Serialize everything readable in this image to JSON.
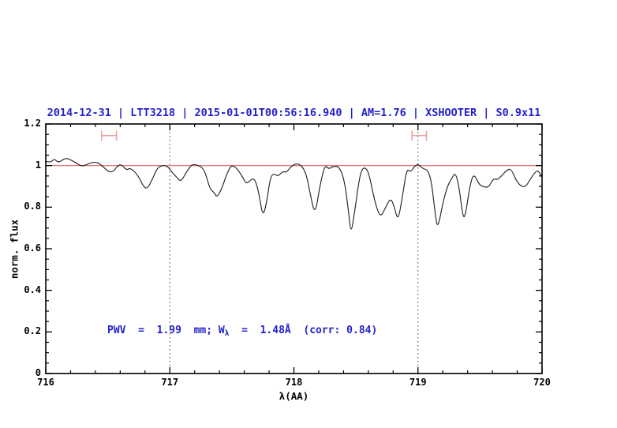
{
  "title": "2014-12-31 | LTT3218 | 2015-01-01T00:56:16.940 | AM=1.76 | XSHOOTER | S0.9x11",
  "annotation": {
    "prefix": "PWV  =  1.99  mm; W",
    "subscript": "λ",
    "suffix": "  =  1.48Å  (corr: 0.84)"
  },
  "colors": {
    "title_blue": "#2222cc",
    "continuum_red": "#e06060",
    "marker_red": "#f0a0a0",
    "curve_black": "#1c1c1c",
    "frame_black": "#000000"
  },
  "axes": {
    "x_label": "λ(AA)",
    "y_label": "norm. flux",
    "x_min": 716,
    "x_max": 720,
    "y_min": 0,
    "y_max": 1.2,
    "x_minor_step": 0.2,
    "y_minor_step": 0.05,
    "x_major_ticks": [
      {
        "value": 716,
        "label": "716"
      },
      {
        "value": 717,
        "label": "717"
      },
      {
        "value": 718,
        "label": "718"
      },
      {
        "value": 719,
        "label": "719"
      },
      {
        "value": 720,
        "label": "720"
      }
    ],
    "y_major_ticks": [
      {
        "value": 0,
        "label": "0"
      },
      {
        "value": 0.2,
        "label": "0.2"
      },
      {
        "value": 0.4,
        "label": "0.4"
      },
      {
        "value": 0.6,
        "label": "0.6"
      },
      {
        "value": 0.8,
        "label": "0.8"
      },
      {
        "value": 1,
        "label": "1"
      },
      {
        "value": 1.2,
        "label": "1.2"
      }
    ]
  },
  "chart_data": {
    "type": "line",
    "title": "2014-12-31 | LTT3218 | 2015-01-01T00:56:16.940 | AM=1.76 | XSHOOTER | S0.9x11",
    "xlabel": "λ(AA)",
    "ylabel": "norm. flux",
    "xlim": [
      716,
      720
    ],
    "ylim": [
      0,
      1.2
    ],
    "grid": false,
    "continuum_level": 1.0,
    "dotted_vlines": [
      717,
      719
    ],
    "range_markers": [
      {
        "x_center": 716.51,
        "x_half_width": 0.06,
        "y": 1.144,
        "cap_half_height": 0.024
      },
      {
        "x_center": 719.01,
        "x_half_width": 0.058,
        "y": 1.144,
        "cap_half_height": 0.024
      }
    ],
    "points": [
      [
        716.0,
        1.02
      ],
      [
        716.04,
        1.014
      ],
      [
        716.07,
        1.034
      ],
      [
        716.1,
        1.012
      ],
      [
        716.16,
        1.038
      ],
      [
        716.21,
        1.025
      ],
      [
        716.27,
        1.003
      ],
      [
        716.3,
        0.997
      ],
      [
        716.35,
        1.01
      ],
      [
        716.39,
        1.018
      ],
      [
        716.44,
        1.008
      ],
      [
        716.5,
        0.972
      ],
      [
        716.54,
        0.968
      ],
      [
        716.58,
        1.0
      ],
      [
        716.61,
        1.006
      ],
      [
        716.65,
        0.977
      ],
      [
        716.68,
        0.99
      ],
      [
        716.74,
        0.957
      ],
      [
        716.79,
        0.896
      ],
      [
        716.82,
        0.889
      ],
      [
        716.86,
        0.935
      ],
      [
        716.9,
        0.99
      ],
      [
        716.94,
        1.001
      ],
      [
        716.98,
        0.998
      ],
      [
        717.02,
        0.966
      ],
      [
        717.06,
        0.941
      ],
      [
        717.09,
        0.922
      ],
      [
        717.13,
        0.965
      ],
      [
        717.17,
        1.0
      ],
      [
        717.19,
        1.006
      ],
      [
        717.24,
        1.0
      ],
      [
        717.28,
        0.978
      ],
      [
        717.32,
        0.895
      ],
      [
        717.34,
        0.878
      ],
      [
        717.36,
        0.868
      ],
      [
        717.38,
        0.846
      ],
      [
        717.42,
        0.89
      ],
      [
        717.46,
        0.962
      ],
      [
        717.5,
        1.006
      ],
      [
        717.55,
        0.98
      ],
      [
        717.59,
        0.94
      ],
      [
        717.62,
        0.91
      ],
      [
        717.66,
        0.938
      ],
      [
        717.69,
        0.93
      ],
      [
        717.72,
        0.86
      ],
      [
        717.75,
        0.752
      ],
      [
        717.78,
        0.82
      ],
      [
        717.81,
        0.945
      ],
      [
        717.84,
        0.962
      ],
      [
        717.87,
        0.947
      ],
      [
        717.91,
        0.972
      ],
      [
        717.94,
        0.967
      ],
      [
        717.98,
        0.998
      ],
      [
        718.02,
        1.01
      ],
      [
        718.06,
        1.002
      ],
      [
        718.1,
        0.96
      ],
      [
        718.13,
        0.868
      ],
      [
        718.17,
        0.757
      ],
      [
        718.21,
        0.905
      ],
      [
        718.25,
        1.005
      ],
      [
        718.28,
        0.982
      ],
      [
        718.32,
        0.998
      ],
      [
        718.37,
        0.993
      ],
      [
        718.41,
        0.92
      ],
      [
        718.44,
        0.78
      ],
      [
        718.46,
        0.666
      ],
      [
        718.49,
        0.78
      ],
      [
        718.53,
        0.95
      ],
      [
        718.56,
        0.995
      ],
      [
        718.6,
        0.975
      ],
      [
        718.64,
        0.86
      ],
      [
        718.67,
        0.79
      ],
      [
        718.7,
        0.752
      ],
      [
        718.74,
        0.8
      ],
      [
        718.78,
        0.845
      ],
      [
        718.81,
        0.8
      ],
      [
        718.84,
        0.73
      ],
      [
        718.88,
        0.87
      ],
      [
        718.91,
        0.985
      ],
      [
        718.94,
        0.968
      ],
      [
        718.97,
        0.995
      ],
      [
        719.0,
        1.008
      ],
      [
        719.04,
        0.985
      ],
      [
        719.08,
        0.978
      ],
      [
        719.11,
        0.92
      ],
      [
        719.14,
        0.76
      ],
      [
        719.16,
        0.695
      ],
      [
        719.2,
        0.82
      ],
      [
        719.24,
        0.905
      ],
      [
        719.27,
        0.935
      ],
      [
        719.3,
        0.968
      ],
      [
        719.33,
        0.905
      ],
      [
        719.36,
        0.76
      ],
      [
        719.38,
        0.748
      ],
      [
        719.42,
        0.91
      ],
      [
        719.45,
        0.963
      ],
      [
        719.49,
        0.91
      ],
      [
        719.53,
        0.897
      ],
      [
        719.57,
        0.895
      ],
      [
        719.61,
        0.94
      ],
      [
        719.64,
        0.93
      ],
      [
        719.68,
        0.955
      ],
      [
        719.72,
        0.98
      ],
      [
        719.75,
        0.985
      ],
      [
        719.79,
        0.93
      ],
      [
        719.83,
        0.9
      ],
      [
        719.87,
        0.898
      ],
      [
        719.91,
        0.94
      ],
      [
        719.95,
        0.972
      ],
      [
        719.97,
        0.975
      ],
      [
        720.0,
        0.945
      ]
    ]
  }
}
